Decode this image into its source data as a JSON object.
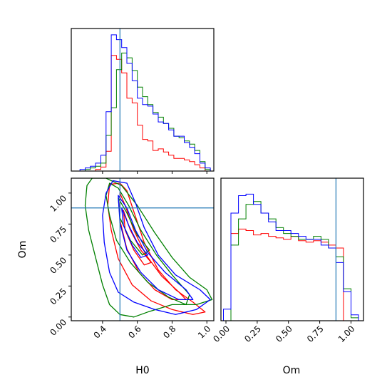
{
  "colors": {
    "s0": "#ff0000",
    "s1": "#008000",
    "s2": "#0000ff",
    "truth": "#1f77b4"
  },
  "chart_data": [
    {
      "type": "histogram",
      "panel": "H0",
      "xlim": [
        0.22,
        1.04
      ],
      "bin_edges": [
        0.27,
        0.3,
        0.33,
        0.36,
        0.39,
        0.42,
        0.45,
        0.48,
        0.51,
        0.54,
        0.57,
        0.6,
        0.63,
        0.66,
        0.69,
        0.72,
        0.75,
        0.78,
        0.81,
        0.84,
        0.87,
        0.9,
        0.93,
        0.96,
        0.99,
        1.02
      ],
      "series": [
        {
          "color": "#ff0000",
          "counts": [
            0,
            0,
            0,
            2,
            5,
            25,
            146,
            141,
            124,
            92,
            86,
            58,
            40,
            38,
            26,
            28,
            24,
            20,
            16,
            16,
            14,
            12,
            8,
            4,
            0
          ]
        },
        {
          "color": "#008000",
          "counts": [
            0,
            2,
            4,
            6,
            10,
            45,
            80,
            128,
            149,
            143,
            127,
            106,
            94,
            84,
            74,
            68,
            60,
            54,
            44,
            42,
            38,
            34,
            26,
            12,
            2
          ]
        },
        {
          "color": "#0000ff",
          "counts": [
            2,
            4,
            6,
            10,
            20,
            75,
            172,
            166,
            156,
            136,
            114,
            92,
            84,
            82,
            72,
            62,
            60,
            52,
            44,
            44,
            36,
            30,
            22,
            10,
            4
          ]
        }
      ],
      "truth": 0.5,
      "xticks": [
        "0.4",
        "0.6",
        "0.8",
        "1.0"
      ]
    },
    {
      "type": "contour",
      "panel": "H0 vs Om",
      "xlabel": "H0",
      "ylabel": "Om",
      "xlim": [
        0.22,
        1.04
      ],
      "ylim": [
        -0.03,
        1.12
      ],
      "truth": {
        "x": 0.5,
        "y": 0.88
      },
      "xticks": [
        "0.4",
        "0.6",
        "0.8",
        "1.0"
      ],
      "yticks": [
        "0.00",
        "0.25",
        "0.50",
        "0.75",
        "1.00"
      ],
      "contours": [
        {
          "color": "#ff0000",
          "points": [
            [
              0.44,
              1.07
            ],
            [
              0.5,
              1.08
            ],
            [
              0.54,
              1.02
            ],
            [
              0.58,
              0.85
            ],
            [
              0.64,
              0.6
            ],
            [
              0.72,
              0.38
            ],
            [
              0.82,
              0.22
            ],
            [
              0.92,
              0.12
            ],
            [
              0.99,
              0.04
            ],
            [
              0.92,
              0.02
            ],
            [
              0.8,
              0.06
            ],
            [
              0.68,
              0.13
            ],
            [
              0.57,
              0.26
            ],
            [
              0.49,
              0.47
            ],
            [
              0.45,
              0.7
            ],
            [
              0.43,
              0.9
            ]
          ]
        },
        {
          "color": "#ff0000",
          "points": [
            [
              0.5,
              1.0
            ],
            [
              0.53,
              0.9
            ],
            [
              0.58,
              0.7
            ],
            [
              0.65,
              0.5
            ],
            [
              0.74,
              0.33
            ],
            [
              0.84,
              0.2
            ],
            [
              0.88,
              0.14
            ],
            [
              0.8,
              0.14
            ],
            [
              0.7,
              0.22
            ],
            [
              0.61,
              0.36
            ],
            [
              0.54,
              0.55
            ],
            [
              0.5,
              0.78
            ]
          ]
        },
        {
          "color": "#ff0000",
          "points": [
            [
              0.52,
              0.86
            ],
            [
              0.56,
              0.7
            ],
            [
              0.62,
              0.54
            ],
            [
              0.68,
              0.44
            ],
            [
              0.64,
              0.42
            ],
            [
              0.58,
              0.54
            ],
            [
              0.53,
              0.7
            ]
          ]
        },
        {
          "color": "#008000",
          "points": [
            [
              0.34,
              1.12
            ],
            [
              0.42,
              1.12
            ],
            [
              0.51,
              1.06
            ],
            [
              0.6,
              0.9
            ],
            [
              0.7,
              0.68
            ],
            [
              0.8,
              0.48
            ],
            [
              0.9,
              0.32
            ],
            [
              1.0,
              0.22
            ],
            [
              1.03,
              0.14
            ],
            [
              0.94,
              0.1
            ],
            [
              0.8,
              0.1
            ],
            [
              0.66,
              0.04
            ],
            [
              0.58,
              0.0
            ],
            [
              0.5,
              0.02
            ],
            [
              0.44,
              0.1
            ],
            [
              0.4,
              0.26
            ],
            [
              0.36,
              0.48
            ],
            [
              0.32,
              0.7
            ],
            [
              0.3,
              0.9
            ],
            [
              0.31,
              1.06
            ]
          ]
        },
        {
          "color": "#008000",
          "points": [
            [
              0.44,
              1.08
            ],
            [
              0.49,
              1.04
            ],
            [
              0.55,
              0.9
            ],
            [
              0.62,
              0.7
            ],
            [
              0.71,
              0.5
            ],
            [
              0.8,
              0.34
            ],
            [
              0.9,
              0.18
            ],
            [
              0.88,
              0.1
            ],
            [
              0.78,
              0.16
            ],
            [
              0.66,
              0.28
            ],
            [
              0.56,
              0.44
            ],
            [
              0.48,
              0.62
            ],
            [
              0.44,
              0.82
            ],
            [
              0.42,
              0.98
            ]
          ]
        },
        {
          "color": "#008000",
          "points": [
            [
              0.49,
              0.96
            ],
            [
              0.54,
              0.84
            ],
            [
              0.6,
              0.66
            ],
            [
              0.67,
              0.54
            ],
            [
              0.63,
              0.5
            ],
            [
              0.56,
              0.62
            ],
            [
              0.5,
              0.8
            ]
          ]
        },
        {
          "color": "#0000ff",
          "points": [
            [
              0.46,
              1.1
            ],
            [
              0.54,
              1.08
            ],
            [
              0.59,
              0.92
            ],
            [
              0.64,
              0.72
            ],
            [
              0.72,
              0.5
            ],
            [
              0.82,
              0.34
            ],
            [
              0.96,
              0.22
            ],
            [
              1.02,
              0.14
            ],
            [
              0.94,
              0.06
            ],
            [
              0.82,
              0.02
            ],
            [
              0.7,
              0.06
            ],
            [
              0.58,
              0.12
            ],
            [
              0.49,
              0.2
            ],
            [
              0.44,
              0.36
            ],
            [
              0.41,
              0.6
            ],
            [
              0.4,
              0.82
            ],
            [
              0.42,
              1.0
            ]
          ]
        },
        {
          "color": "#0000ff",
          "points": [
            [
              0.49,
              0.98
            ],
            [
              0.54,
              0.88
            ],
            [
              0.59,
              0.7
            ],
            [
              0.66,
              0.52
            ],
            [
              0.76,
              0.36
            ],
            [
              0.88,
              0.22
            ],
            [
              0.92,
              0.14
            ],
            [
              0.84,
              0.14
            ],
            [
              0.72,
              0.22
            ],
            [
              0.62,
              0.36
            ],
            [
              0.54,
              0.54
            ],
            [
              0.5,
              0.76
            ]
          ]
        },
        {
          "color": "#0000ff",
          "points": [
            [
              0.51,
              0.88
            ],
            [
              0.55,
              0.74
            ],
            [
              0.6,
              0.6
            ],
            [
              0.66,
              0.5
            ],
            [
              0.62,
              0.48
            ],
            [
              0.57,
              0.58
            ],
            [
              0.52,
              0.74
            ]
          ]
        }
      ]
    },
    {
      "type": "histogram",
      "panel": "Om",
      "xlabel": "Om",
      "xlim": [
        -0.04,
        1.1
      ],
      "bin_edges": [
        -0.02,
        0.04,
        0.1,
        0.16,
        0.22,
        0.28,
        0.34,
        0.4,
        0.46,
        0.52,
        0.58,
        0.64,
        0.7,
        0.76,
        0.82,
        0.88,
        0.94,
        1.0,
        1.06
      ],
      "series": [
        {
          "color": "#ff0000",
          "counts": [
            0,
            60,
            63,
            62,
            59,
            60,
            58,
            57,
            56,
            58,
            55,
            54,
            55,
            54,
            52,
            50,
            0,
            0
          ]
        },
        {
          "color": "#008000",
          "counts": [
            0,
            52,
            70,
            80,
            82,
            74,
            70,
            64,
            60,
            58,
            56,
            56,
            58,
            56,
            50,
            44,
            22,
            2
          ]
        },
        {
          "color": "#0000ff",
          "counts": [
            8,
            74,
            86,
            87,
            80,
            74,
            68,
            62,
            62,
            60,
            58,
            56,
            56,
            52,
            50,
            40,
            20,
            4
          ]
        }
      ],
      "truth": 0.88,
      "xticks": [
        "0.00",
        "0.25",
        "0.50",
        "0.75",
        "1.00"
      ]
    }
  ]
}
